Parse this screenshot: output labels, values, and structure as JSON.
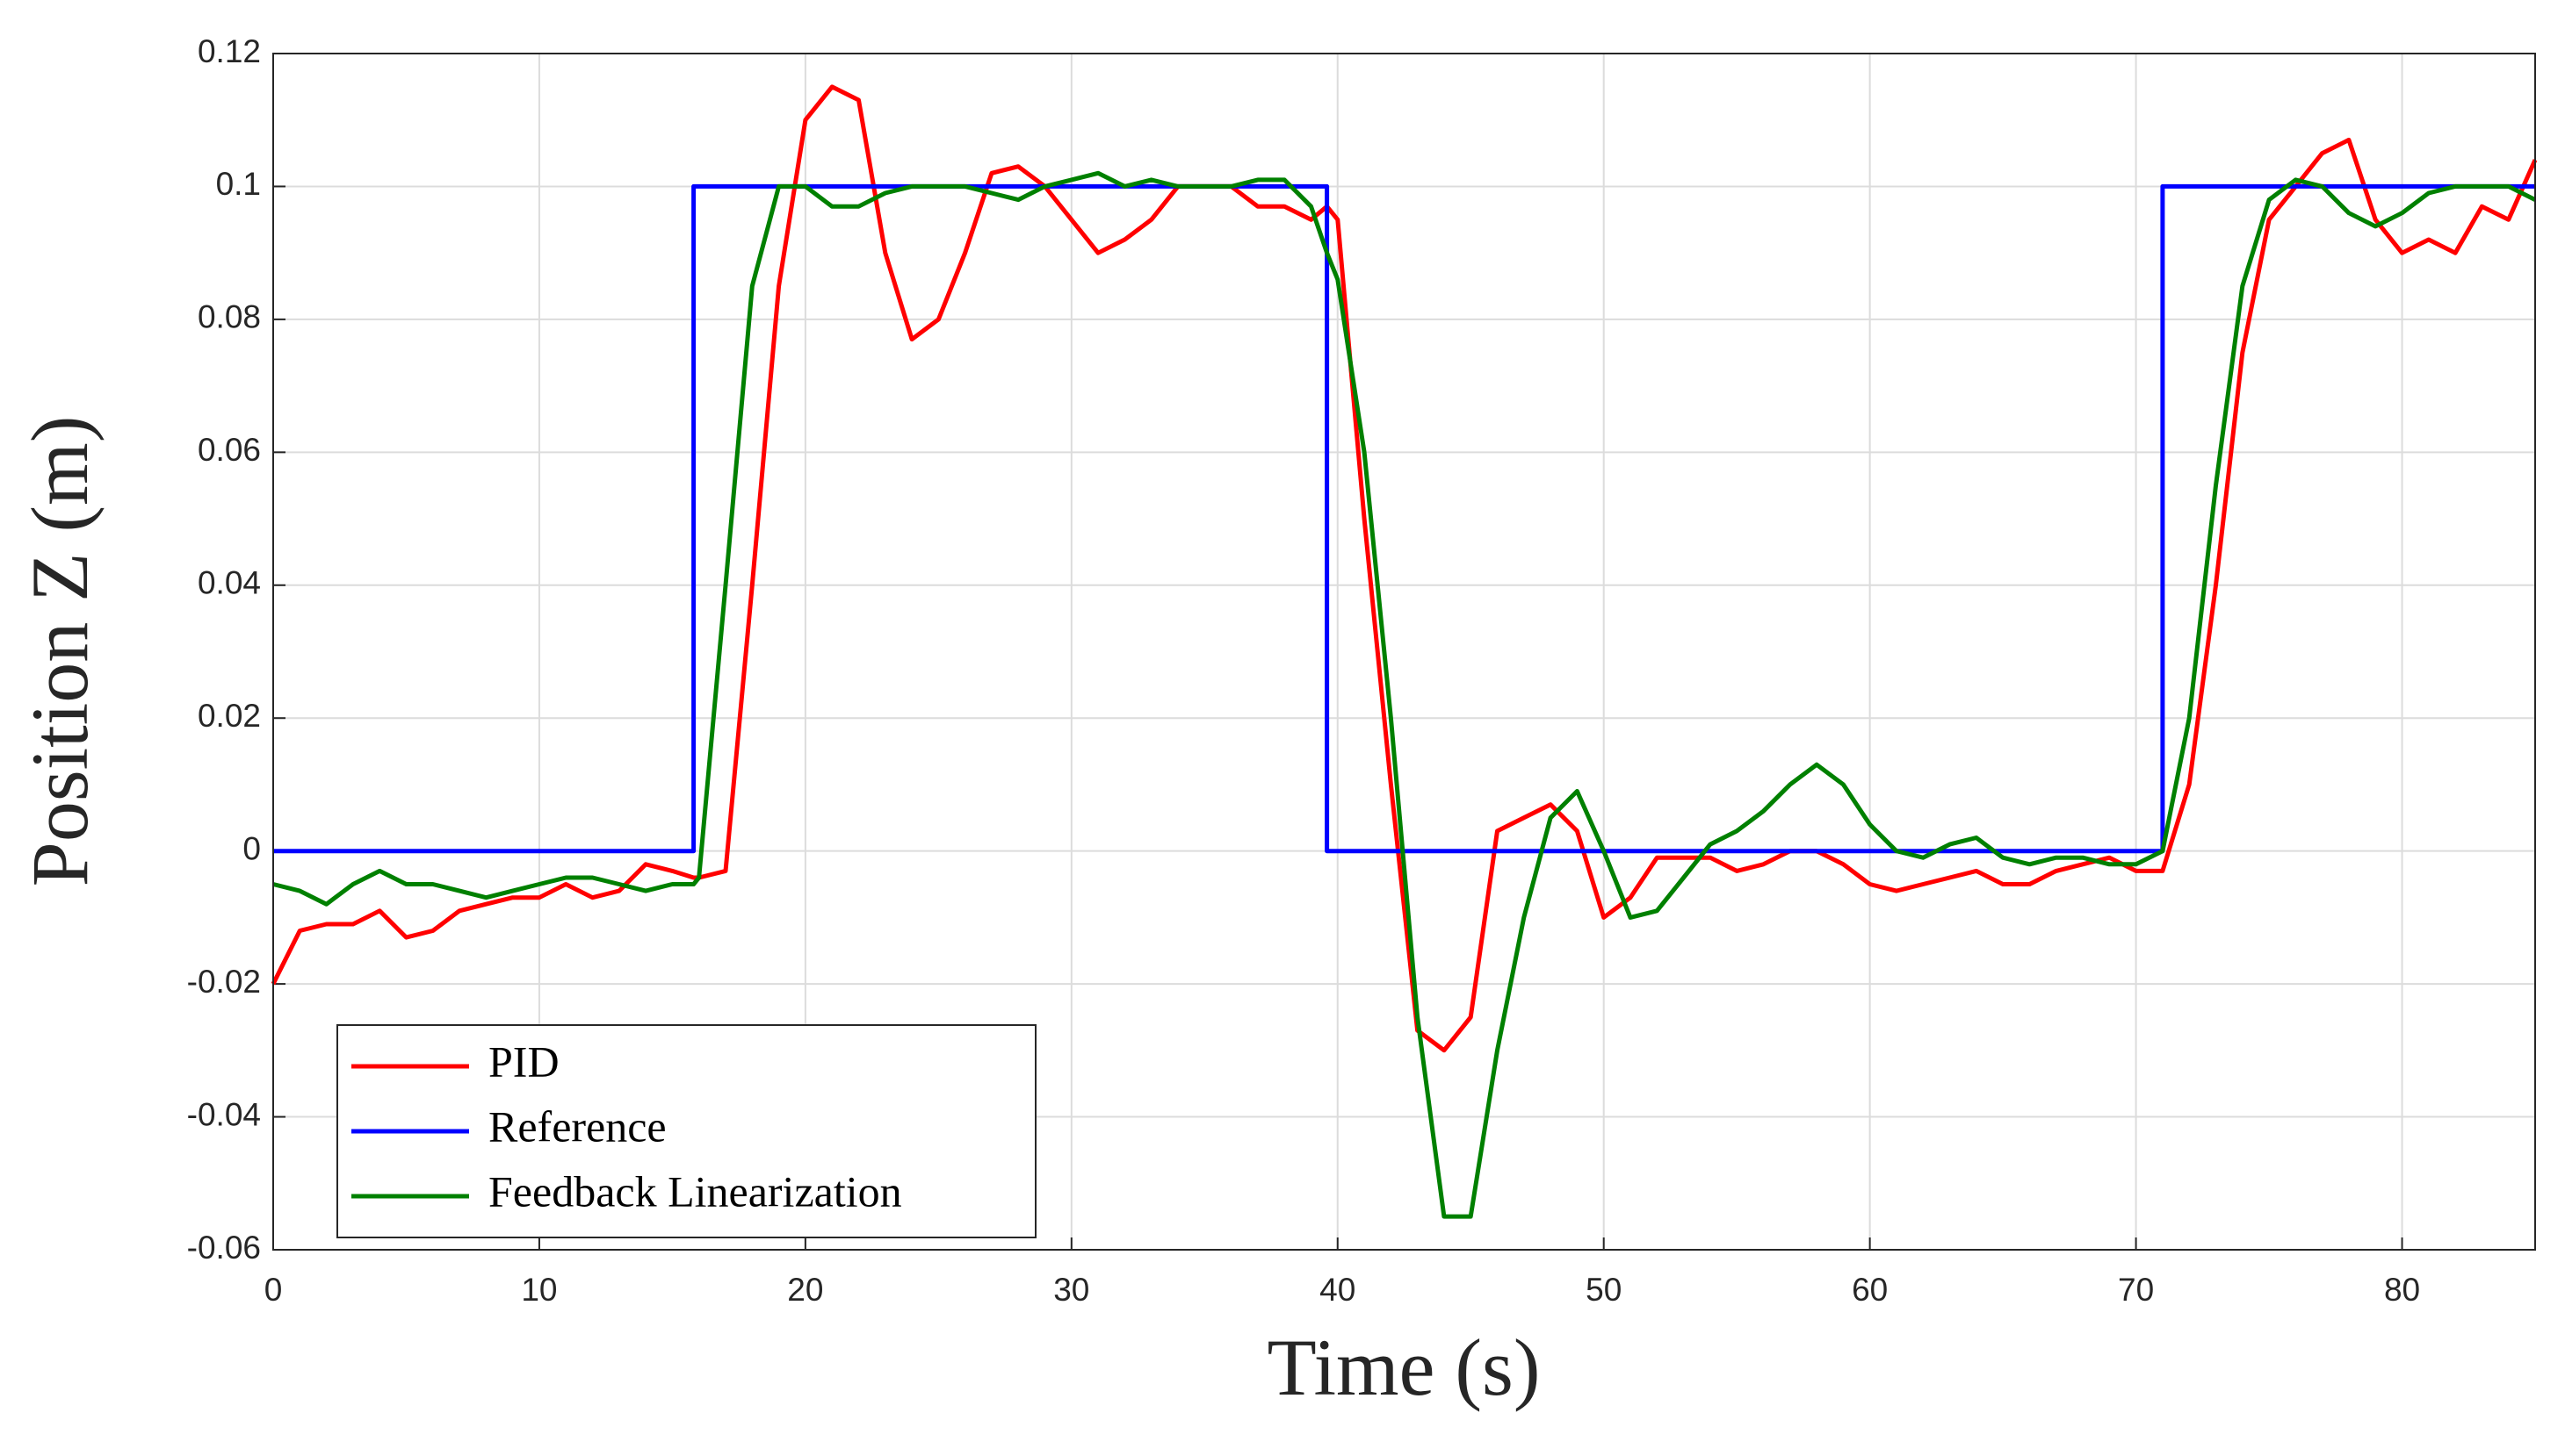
{
  "chart_data": {
    "type": "line",
    "xlabel": "Time (s)",
    "ylabel": "Position Z (m)",
    "xlim": [
      0,
      85
    ],
    "ylim": [
      -0.06,
      0.12
    ],
    "xticks": [
      0,
      10,
      20,
      30,
      40,
      50,
      60,
      70,
      80
    ],
    "yticks": [
      -0.06,
      -0.04,
      -0.02,
      0,
      0.02,
      0.04,
      0.06,
      0.08,
      0.1,
      0.12
    ],
    "grid": true,
    "legend": "lower left",
    "x": [
      0,
      1,
      2,
      3,
      4,
      5,
      6,
      7,
      8,
      9,
      10,
      11,
      12,
      13,
      14,
      15,
      15.8,
      15.8,
      16,
      17,
      18,
      19,
      20,
      21,
      22,
      23,
      24,
      25,
      26,
      27,
      28,
      29,
      30,
      31,
      32,
      33,
      34,
      35,
      36,
      37,
      38,
      39,
      39.6,
      39.6,
      40,
      41,
      42,
      43,
      44,
      45,
      46,
      47,
      48,
      49,
      50,
      51,
      52,
      53,
      54,
      55,
      56,
      57,
      58,
      59,
      60,
      61,
      62,
      63,
      64,
      65,
      66,
      67,
      68,
      69,
      70,
      71,
      71,
      72,
      73,
      74,
      75,
      76,
      77,
      78,
      79,
      80,
      81,
      82,
      83,
      84,
      85
    ],
    "series": [
      {
        "name": "PID",
        "color": "#ff0000",
        "values": [
          -0.02,
          -0.012,
          -0.011,
          -0.011,
          -0.009,
          -0.013,
          -0.012,
          -0.009,
          -0.008,
          -0.007,
          -0.007,
          -0.005,
          -0.007,
          -0.006,
          -0.002,
          -0.003,
          -0.004,
          -0.004,
          -0.004,
          -0.003,
          0.04,
          0.085,
          0.11,
          0.115,
          0.113,
          0.09,
          0.077,
          0.08,
          0.09,
          0.102,
          0.103,
          0.1,
          0.095,
          0.09,
          0.092,
          0.095,
          0.1,
          0.1,
          0.1,
          0.097,
          0.097,
          0.095,
          0.097,
          0.097,
          0.095,
          0.05,
          0.01,
          -0.027,
          -0.03,
          -0.025,
          0.003,
          0.005,
          0.007,
          0.003,
          -0.01,
          -0.007,
          -0.001,
          -0.001,
          -0.001,
          -0.003,
          -0.002,
          0,
          0,
          -0.002,
          -0.005,
          -0.006,
          -0.005,
          -0.004,
          -0.003,
          -0.005,
          -0.005,
          -0.003,
          -0.002,
          -0.001,
          -0.003,
          -0.003,
          -0.003,
          0.01,
          0.04,
          0.075,
          0.095,
          0.1,
          0.105,
          0.107,
          0.095,
          0.09,
          0.092,
          0.09,
          0.097,
          0.095,
          0.104
        ]
      },
      {
        "name": "Reference",
        "color": "#0000ff",
        "values": [
          0,
          0,
          0,
          0,
          0,
          0,
          0,
          0,
          0,
          0,
          0,
          0,
          0,
          0,
          0,
          0,
          0,
          0.1,
          0.1,
          0.1,
          0.1,
          0.1,
          0.1,
          0.1,
          0.1,
          0.1,
          0.1,
          0.1,
          0.1,
          0.1,
          0.1,
          0.1,
          0.1,
          0.1,
          0.1,
          0.1,
          0.1,
          0.1,
          0.1,
          0.1,
          0.1,
          0.1,
          0.1,
          0,
          0,
          0,
          0,
          0,
          0,
          0,
          0,
          0,
          0,
          0,
          0,
          0,
          0,
          0,
          0,
          0,
          0,
          0,
          0,
          0,
          0,
          0,
          0,
          0,
          0,
          0,
          0,
          0,
          0,
          0,
          0,
          0,
          0.1,
          0.1,
          0.1,
          0.1,
          0.1,
          0.1,
          0.1,
          0.1,
          0.1,
          0.1,
          0.1,
          0.1,
          0.1,
          0.1,
          0.1
        ]
      },
      {
        "name": "Feedback Linearization",
        "color": "#008000",
        "values": [
          -0.005,
          -0.006,
          -0.008,
          -0.005,
          -0.003,
          -0.005,
          -0.005,
          -0.006,
          -0.007,
          -0.006,
          -0.005,
          -0.004,
          -0.004,
          -0.005,
          -0.006,
          -0.005,
          -0.005,
          -0.005,
          -0.004,
          0.04,
          0.085,
          0.1,
          0.1,
          0.097,
          0.097,
          0.099,
          0.1,
          0.1,
          0.1,
          0.099,
          0.098,
          0.1,
          0.101,
          0.102,
          0.1,
          0.101,
          0.1,
          0.1,
          0.1,
          0.101,
          0.101,
          0.097,
          0.09,
          0.09,
          0.086,
          0.06,
          0.02,
          -0.025,
          -0.055,
          -0.055,
          -0.03,
          -0.01,
          0.005,
          0.009,
          0,
          -0.01,
          -0.009,
          -0.004,
          0.001,
          0.003,
          0.006,
          0.01,
          0.013,
          0.01,
          0.004,
          0,
          -0.001,
          0.001,
          0.002,
          -0.001,
          -0.002,
          -0.001,
          -0.001,
          -0.002,
          -0.002,
          0,
          0,
          0.02,
          0.055,
          0.085,
          0.098,
          0.101,
          0.1,
          0.096,
          0.094,
          0.096,
          0.099,
          0.1,
          0.1,
          0.1,
          0.098
        ]
      }
    ]
  }
}
